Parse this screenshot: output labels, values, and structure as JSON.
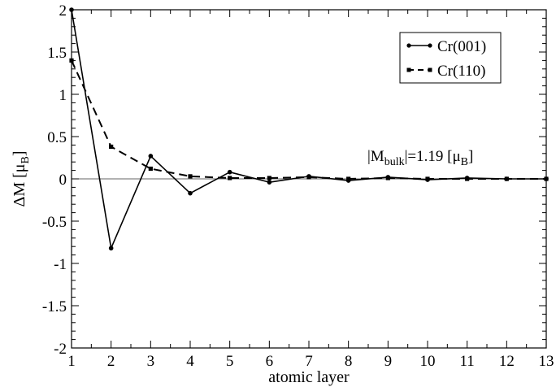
{
  "chart_data": {
    "type": "line",
    "xlabel": "atomic layer",
    "ylabel": {
      "base": "ΔM [μ",
      "sub": "B",
      "tail": "]"
    },
    "xlim": [
      1,
      13
    ],
    "ylim": [
      -2,
      2
    ],
    "xticks": [
      1,
      2,
      3,
      4,
      5,
      6,
      7,
      8,
      9,
      10,
      11,
      12,
      13
    ],
    "yticks": [
      -2,
      -1.5,
      -1,
      -0.5,
      0,
      0.5,
      1,
      1.5,
      2
    ],
    "ytick_labels": [
      "-2",
      "-1.5",
      "-1",
      "-0.5",
      "0",
      "0.5",
      "1",
      "1.5",
      "2"
    ],
    "grid": false,
    "zero_line": true,
    "legend_position": "top-right",
    "annotation": {
      "prefix": "|M",
      "sub1": "bulk",
      "middle": "|=1.19 [μ",
      "sub2": "B",
      "suffix": "]"
    },
    "x": [
      1,
      2,
      3,
      4,
      5,
      6,
      7,
      8,
      9,
      10,
      11,
      12,
      13
    ],
    "series": [
      {
        "name": "Cr(001)",
        "style": "solid",
        "marker": "circle",
        "color": "#000000",
        "values": [
          2.0,
          -0.82,
          0.27,
          -0.17,
          0.08,
          -0.04,
          0.03,
          -0.02,
          0.02,
          -0.01,
          0.01,
          0.0,
          0.0
        ]
      },
      {
        "name": "Cr(110)",
        "style": "dashed",
        "marker": "square",
        "color": "#000000",
        "values": [
          1.4,
          0.38,
          0.12,
          0.03,
          0.01,
          0.01,
          0.02,
          0.0,
          0.01,
          0.0,
          0.0,
          0.0,
          0.0
        ]
      }
    ]
  }
}
